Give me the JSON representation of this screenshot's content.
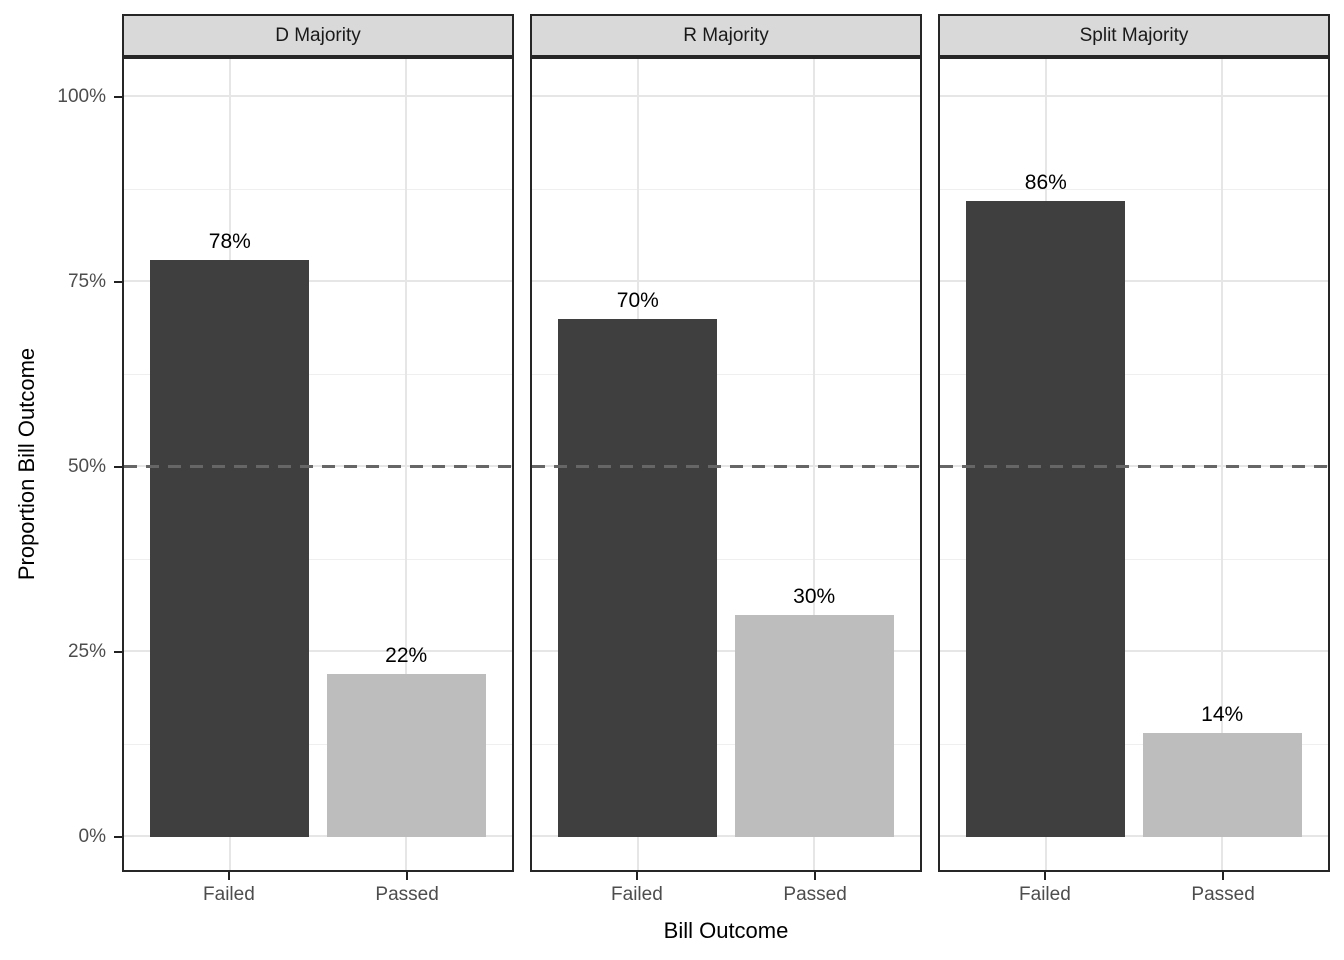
{
  "chart_data": {
    "type": "bar",
    "title": "",
    "xlabel": "Bill Outcome",
    "ylabel": "Proportion Bill Outcome",
    "categories": [
      "Failed",
      "Passed"
    ],
    "yticks": [
      "0%",
      "25%",
      "50%",
      "75%",
      "100%"
    ],
    "ytick_values": [
      0,
      25,
      50,
      75,
      100
    ],
    "ylim": [
      0,
      105
    ],
    "grid": "major+minor horizontal, vertical at category centers",
    "legend": "none",
    "reference_line": 50,
    "reference_line_style": "dashed gray",
    "bar_colors": {
      "failed": "#3f3f3f",
      "passed": "#bdbdbd"
    },
    "strip_fill": "#d9d9d9",
    "facets": [
      {
        "label": "D Majority",
        "bars": [
          {
            "category": "Failed",
            "value": 78,
            "label": "78%"
          },
          {
            "category": "Passed",
            "value": 22,
            "label": "22%"
          }
        ]
      },
      {
        "label": "R Majority",
        "bars": [
          {
            "category": "Failed",
            "value": 70,
            "label": "70%"
          },
          {
            "category": "Passed",
            "value": 30,
            "label": "30%"
          }
        ]
      },
      {
        "label": "Split Majority",
        "bars": [
          {
            "category": "Failed",
            "value": 86,
            "label": "86%"
          },
          {
            "category": "Passed",
            "value": 14,
            "label": "14%"
          }
        ]
      }
    ]
  }
}
